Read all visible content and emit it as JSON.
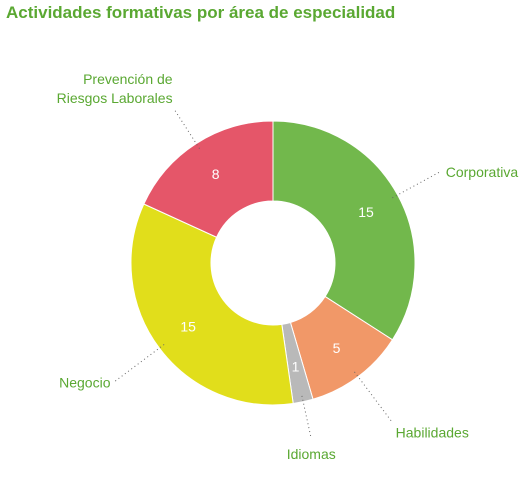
{
  "chart_data": {
    "type": "pie",
    "title": "Actividades formativas por área de especialidad",
    "categories": [
      "Corporativa",
      "Habilidades",
      "Idiomas",
      "Negocio",
      "Prevención de Riesgos Laborales"
    ],
    "values": [
      15,
      5,
      1,
      15,
      8
    ],
    "label_lines": [
      [
        "Corporativa"
      ],
      [
        "Habilidades"
      ],
      [
        "Idiomas"
      ],
      [
        "Negocio"
      ],
      [
        "Prevención de",
        "Riesgos Laborales"
      ]
    ],
    "colors": [
      "#72b84c",
      "#f19868",
      "#b9b9b9",
      "#e1de1b",
      "#e55669"
    ],
    "donut": true,
    "legend": "none"
  }
}
